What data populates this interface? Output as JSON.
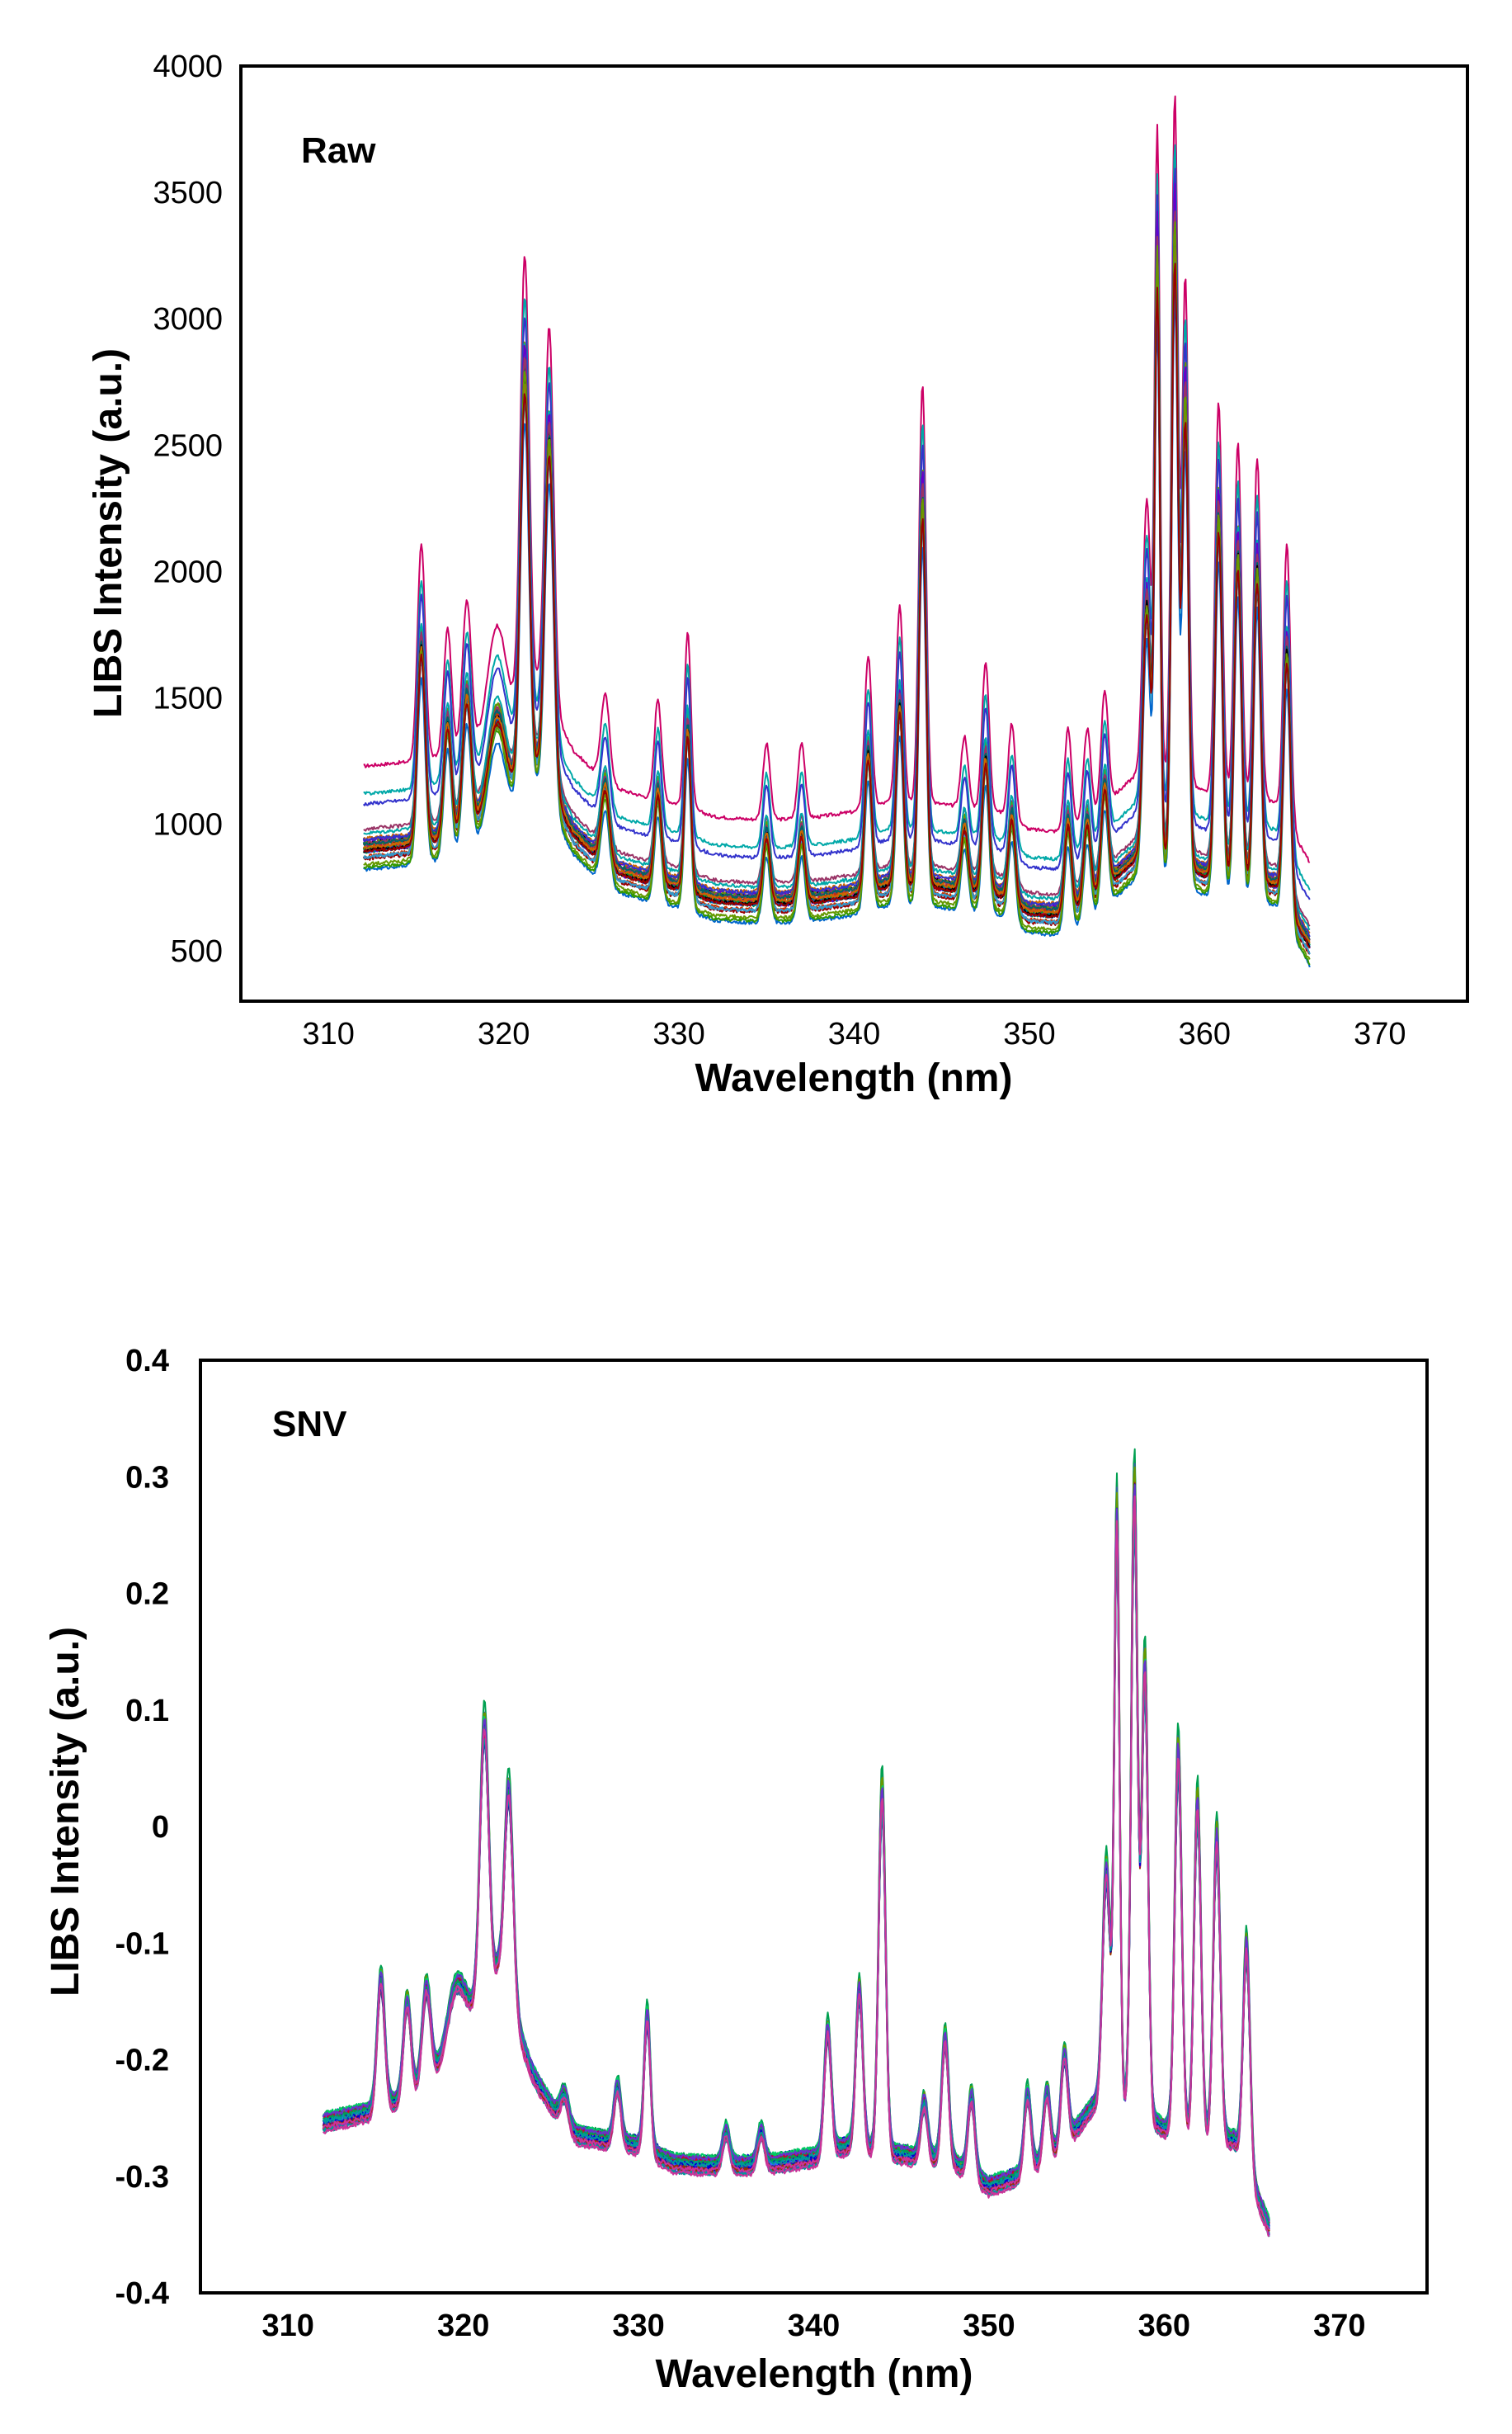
{
  "chart_data": [
    {
      "type": "line",
      "title": "Raw",
      "xlabel": "Wavelength (nm)",
      "ylabel": "LIBS Intensity (a.u.)",
      "xlim": [
        305,
        375
      ],
      "ylim": [
        300,
        4000
      ],
      "xticks": [
        "310",
        "320",
        "330",
        "340",
        "350",
        "360",
        "370"
      ],
      "yticks": [
        "500",
        "1000",
        "1500",
        "2000",
        "2500",
        "3000",
        "3500",
        "4000"
      ],
      "x_range": [
        312,
        366
      ],
      "baseline": [
        [
          312,
          900
        ],
        [
          315,
          920
        ],
        [
          318,
          960
        ],
        [
          320,
          1080
        ],
        [
          322,
          1220
        ],
        [
          324,
          960
        ],
        [
          326,
          820
        ],
        [
          328,
          780
        ],
        [
          330,
          750
        ],
        [
          332,
          700
        ],
        [
          334,
          690
        ],
        [
          336,
          690
        ],
        [
          338,
          700
        ],
        [
          340,
          720
        ],
        [
          342,
          760
        ],
        [
          344,
          760
        ],
        [
          346,
          740
        ],
        [
          348,
          730
        ],
        [
          350,
          650
        ],
        [
          352,
          640
        ],
        [
          354,
          730
        ],
        [
          356,
          860
        ],
        [
          358,
          860
        ],
        [
          360,
          800
        ],
        [
          362,
          780
        ],
        [
          364,
          760
        ],
        [
          366,
          520
        ]
      ],
      "peaks": [
        [
          315.3,
          850,
          0.22
        ],
        [
          316.8,
          500,
          0.22
        ],
        [
          317.9,
          600,
          0.25
        ],
        [
          319.6,
          400,
          0.5
        ],
        [
          321.2,
          1750,
          0.25
        ],
        [
          322.6,
          1500,
          0.25
        ],
        [
          325.8,
          350,
          0.25
        ],
        [
          328.8,
          400,
          0.2
        ],
        [
          330.5,
          700,
          0.18
        ],
        [
          335,
          300,
          0.2
        ],
        [
          337,
          300,
          0.2
        ],
        [
          340.8,
          600,
          0.2
        ],
        [
          342.6,
          780,
          0.2
        ],
        [
          343.9,
          1650,
          0.2
        ],
        [
          346.3,
          280,
          0.2
        ],
        [
          347.5,
          580,
          0.2
        ],
        [
          349.0,
          380,
          0.2
        ],
        [
          352.2,
          400,
          0.2
        ],
        [
          353.3,
          350,
          0.2
        ],
        [
          354.3,
          450,
          0.2
        ],
        [
          356.7,
          1100,
          0.22
        ],
        [
          357.3,
          2550,
          0.15
        ],
        [
          358.3,
          2700,
          0.18
        ],
        [
          358.9,
          2000,
          0.18
        ],
        [
          360.8,
          1550,
          0.2
        ],
        [
          361.9,
          1400,
          0.2
        ],
        [
          363.0,
          1350,
          0.2
        ],
        [
          364.7,
          1100,
          0.2
        ]
      ],
      "series_count": 30,
      "series_colors": [
        "#cc0066",
        "#00a8a8",
        "#3333cc",
        "#009933",
        "#cc3300",
        "#6600cc",
        "#0066cc",
        "#339900",
        "#993366",
        "#006666",
        "#000000",
        "#cc6600",
        "#3399cc",
        "#669900",
        "#990000"
      ]
    },
    {
      "type": "line",
      "title": "SNV",
      "xlabel": "Wavelength (nm)",
      "ylabel": "LIBS Intensity (a.u.)",
      "xlim": [
        305,
        375
      ],
      "ylim": [
        -0.4,
        0.4
      ],
      "xticks": [
        "310",
        "320",
        "330",
        "340",
        "350",
        "360",
        "370"
      ],
      "yticks": [
        "-0.4",
        "-0.3",
        "-0.2",
        "-0.1",
        "0",
        "0.1",
        "0.2",
        "0.3",
        "0.4"
      ],
      "x_range": [
        312,
        366
      ],
      "baseline": [
        [
          312,
          -0.255
        ],
        [
          315,
          -0.245
        ],
        [
          318,
          -0.225
        ],
        [
          320,
          -0.175
        ],
        [
          322,
          -0.125
        ],
        [
          324,
          -0.215
        ],
        [
          326,
          -0.265
        ],
        [
          328,
          -0.27
        ],
        [
          330,
          -0.275
        ],
        [
          332,
          -0.29
        ],
        [
          334,
          -0.292
        ],
        [
          336,
          -0.292
        ],
        [
          338,
          -0.29
        ],
        [
          340,
          -0.285
        ],
        [
          342,
          -0.275
        ],
        [
          344,
          -0.28
        ],
        [
          346,
          -0.285
        ],
        [
          348,
          -0.29
        ],
        [
          350,
          -0.31
        ],
        [
          352,
          -0.3
        ],
        [
          354,
          -0.28
        ],
        [
          356,
          -0.24
        ],
        [
          358,
          -0.24
        ],
        [
          360,
          -0.26
        ],
        [
          362,
          -0.27
        ],
        [
          364,
          -0.27
        ],
        [
          366,
          -0.345
        ]
      ],
      "peaks": [
        [
          315.3,
          0.115,
          0.22
        ],
        [
          316.8,
          0.085,
          0.22
        ],
        [
          317.9,
          0.09,
          0.25
        ],
        [
          319.6,
          0.05,
          0.5
        ],
        [
          321.2,
          0.24,
          0.25
        ],
        [
          322.6,
          0.19,
          0.25
        ],
        [
          325.8,
          0.03,
          0.25
        ],
        [
          328.8,
          0.05,
          0.2
        ],
        [
          330.5,
          0.12,
          0.18
        ],
        [
          335,
          0.03,
          0.2
        ],
        [
          337,
          0.03,
          0.2
        ],
        [
          340.8,
          0.11,
          0.2
        ],
        [
          342.6,
          0.14,
          0.2
        ],
        [
          343.9,
          0.32,
          0.2
        ],
        [
          346.3,
          0.05,
          0.2
        ],
        [
          347.5,
          0.11,
          0.2
        ],
        [
          349.0,
          0.07,
          0.2
        ],
        [
          352.2,
          0.07,
          0.2
        ],
        [
          353.3,
          0.06,
          0.2
        ],
        [
          354.3,
          0.08,
          0.2
        ],
        [
          356.7,
          0.21,
          0.22
        ],
        [
          357.3,
          0.52,
          0.15
        ],
        [
          358.3,
          0.55,
          0.18
        ],
        [
          358.9,
          0.4,
          0.18
        ],
        [
          360.8,
          0.34,
          0.2
        ],
        [
          361.9,
          0.3,
          0.2
        ],
        [
          363.0,
          0.27,
          0.2
        ],
        [
          364.7,
          0.2,
          0.2
        ]
      ],
      "series_count": 30,
      "series_colors": [
        "#0000cc",
        "#cc0033",
        "#00a050",
        "#6633cc",
        "#009999",
        "#cc3399",
        "#336699",
        "#669900",
        "#993300",
        "#3366ff",
        "#00cc66",
        "#990066"
      ]
    }
  ]
}
